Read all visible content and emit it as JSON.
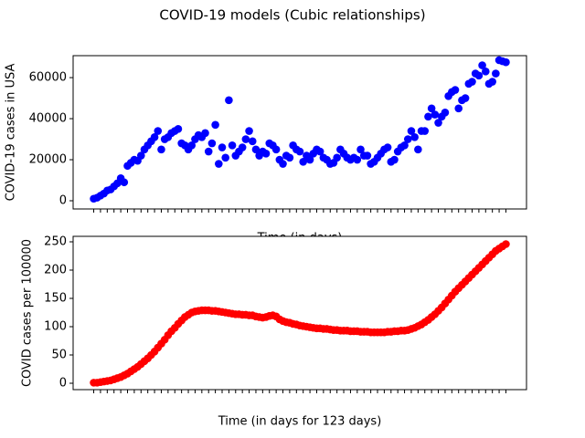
{
  "title": "COVID-19 models (Cubic relationships)",
  "chart_data": [
    {
      "type": "scatter",
      "ylabel": "COVID-19 cases in USA",
      "xlabel": "Time (in days)",
      "color": "#0000ff",
      "xlim": [
        -6.1,
        128.1
      ],
      "ylim": [
        -4000,
        70700
      ],
      "yticks": [
        0,
        20000,
        40000,
        60000
      ],
      "xticks": [
        0,
        2,
        4,
        6,
        8,
        10,
        12,
        14,
        16,
        18,
        20,
        22,
        24,
        26,
        28,
        30,
        32,
        34,
        36,
        38,
        40,
        42,
        44,
        46,
        48,
        50,
        52,
        54,
        56,
        58,
        60,
        62,
        64,
        66,
        68,
        70,
        72,
        74,
        76,
        78,
        80,
        82,
        84,
        86,
        88,
        90,
        92,
        94,
        96,
        98,
        100,
        102,
        104,
        106,
        108,
        110,
        112,
        114,
        116,
        118,
        120,
        122
      ],
      "x": [
        0,
        1,
        2,
        3,
        4,
        5,
        6,
        7,
        8,
        9,
        10,
        11,
        12,
        13,
        14,
        15,
        16,
        17,
        18,
        19,
        20,
        21,
        22,
        23,
        24,
        25,
        26,
        27,
        28,
        29,
        30,
        31,
        32,
        33,
        34,
        35,
        36,
        37,
        38,
        39,
        40,
        41,
        42,
        43,
        44,
        45,
        46,
        47,
        48,
        49,
        50,
        51,
        52,
        53,
        54,
        55,
        56,
        57,
        58,
        59,
        60,
        61,
        62,
        63,
        64,
        65,
        66,
        67,
        68,
        69,
        70,
        71,
        72,
        73,
        74,
        75,
        76,
        77,
        78,
        79,
        80,
        81,
        82,
        83,
        84,
        85,
        86,
        87,
        88,
        89,
        90,
        91,
        92,
        93,
        94,
        95,
        96,
        97,
        98,
        99,
        100,
        101,
        102,
        103,
        104,
        105,
        106,
        107,
        108,
        109,
        110,
        111,
        112,
        113,
        114,
        115,
        116,
        117,
        118,
        119,
        120,
        121,
        122
      ],
      "values": [
        1000,
        1500,
        2500,
        3500,
        5000,
        5500,
        7000,
        8500,
        11000,
        9000,
        17000,
        18500,
        20000,
        19500,
        22000,
        25000,
        27000,
        29000,
        31000,
        34000,
        25000,
        30000,
        31000,
        33000,
        34000,
        35000,
        28000,
        27000,
        25000,
        27000,
        30000,
        32000,
        31000,
        33000,
        24000,
        28000,
        37000,
        18000,
        26000,
        21000,
        49000,
        27000,
        22000,
        24000,
        26000,
        30000,
        34000,
        29000,
        25000,
        22000,
        24000,
        23000,
        28000,
        27000,
        25000,
        20000,
        18000,
        22000,
        21000,
        27000,
        25000,
        24000,
        19000,
        22000,
        20000,
        23000,
        25000,
        24000,
        21000,
        20000,
        18000,
        18500,
        21000,
        25000,
        23000,
        21000,
        20000,
        21000,
        20000,
        25000,
        22000,
        22000,
        18000,
        19000,
        21000,
        23000,
        25000,
        26000,
        19000,
        20000,
        24000,
        26000,
        27000,
        30000,
        34000,
        31000,
        25000,
        34000,
        34000,
        41000,
        45000,
        42000,
        38000,
        41000,
        43000,
        51000,
        53000,
        54000,
        45000,
        49000,
        50000,
        57000,
        58000,
        62000,
        61000,
        66000,
        63000,
        57000,
        58000,
        62000,
        68500,
        68000,
        67500
      ]
    },
    {
      "type": "scatter",
      "ylabel": "COVID cases per 100000",
      "xlabel": "Time (in days for 123 days)",
      "color": "#ff0000",
      "xlim": [
        -6.1,
        128.1
      ],
      "ylim": [
        -11.3,
        259.7
      ],
      "yticks": [
        0,
        50,
        100,
        150,
        200,
        250
      ],
      "xticks": [
        0,
        2,
        4,
        6,
        8,
        10,
        12,
        14,
        16,
        18,
        20,
        22,
        24,
        26,
        28,
        30,
        32,
        34,
        36,
        38,
        40,
        42,
        44,
        46,
        48,
        50,
        52,
        54,
        56,
        58,
        60,
        62,
        64,
        66,
        68,
        70,
        72,
        74,
        76,
        78,
        80,
        82,
        84,
        86,
        88,
        90,
        92,
        94,
        96,
        98,
        100,
        102,
        104,
        106,
        108,
        110,
        112,
        114,
        116,
        118,
        120,
        122
      ],
      "x": [
        0,
        1,
        2,
        3,
        4,
        5,
        6,
        7,
        8,
        9,
        10,
        11,
        12,
        13,
        14,
        15,
        16,
        17,
        18,
        19,
        20,
        21,
        22,
        23,
        24,
        25,
        26,
        27,
        28,
        29,
        30,
        31,
        32,
        33,
        34,
        35,
        36,
        37,
        38,
        39,
        40,
        41,
        42,
        43,
        44,
        45,
        46,
        47,
        48,
        49,
        50,
        51,
        52,
        53,
        54,
        55,
        56,
        57,
        58,
        59,
        60,
        61,
        62,
        63,
        64,
        65,
        66,
        67,
        68,
        69,
        70,
        71,
        72,
        73,
        74,
        75,
        76,
        77,
        78,
        79,
        80,
        81,
        82,
        83,
        84,
        85,
        86,
        87,
        88,
        89,
        90,
        91,
        92,
        93,
        94,
        95,
        96,
        97,
        98,
        99,
        100,
        101,
        102,
        103,
        104,
        105,
        106,
        107,
        108,
        109,
        110,
        111,
        112,
        113,
        114,
        115,
        116,
        117,
        118,
        119,
        120,
        121,
        122
      ],
      "values": [
        1,
        1,
        2,
        3,
        4,
        5,
        7,
        9,
        11,
        14,
        17,
        21,
        25,
        29,
        34,
        39,
        44,
        50,
        56,
        63,
        70,
        77,
        85,
        92,
        98,
        105,
        111,
        117,
        121,
        125,
        127,
        128,
        129,
        129,
        129,
        128,
        128,
        127,
        126,
        125,
        124,
        123,
        122,
        122,
        121,
        121,
        120,
        120,
        118,
        117,
        116,
        117,
        119,
        120,
        118,
        113,
        110,
        108,
        107,
        105,
        104,
        102,
        101,
        100,
        99,
        98,
        97,
        97,
        96,
        96,
        95,
        94,
        94,
        93,
        93,
        93,
        92,
        92,
        92,
        91,
        91,
        91,
        90,
        90,
        90,
        90,
        90,
        91,
        91,
        92,
        92,
        93,
        93,
        94,
        96,
        98,
        101,
        104,
        108,
        112,
        117,
        122,
        128,
        134,
        141,
        148,
        155,
        162,
        168,
        174,
        180,
        186,
        192,
        198,
        204,
        210,
        216,
        222,
        228,
        234,
        238,
        242,
        246
      ]
    }
  ]
}
